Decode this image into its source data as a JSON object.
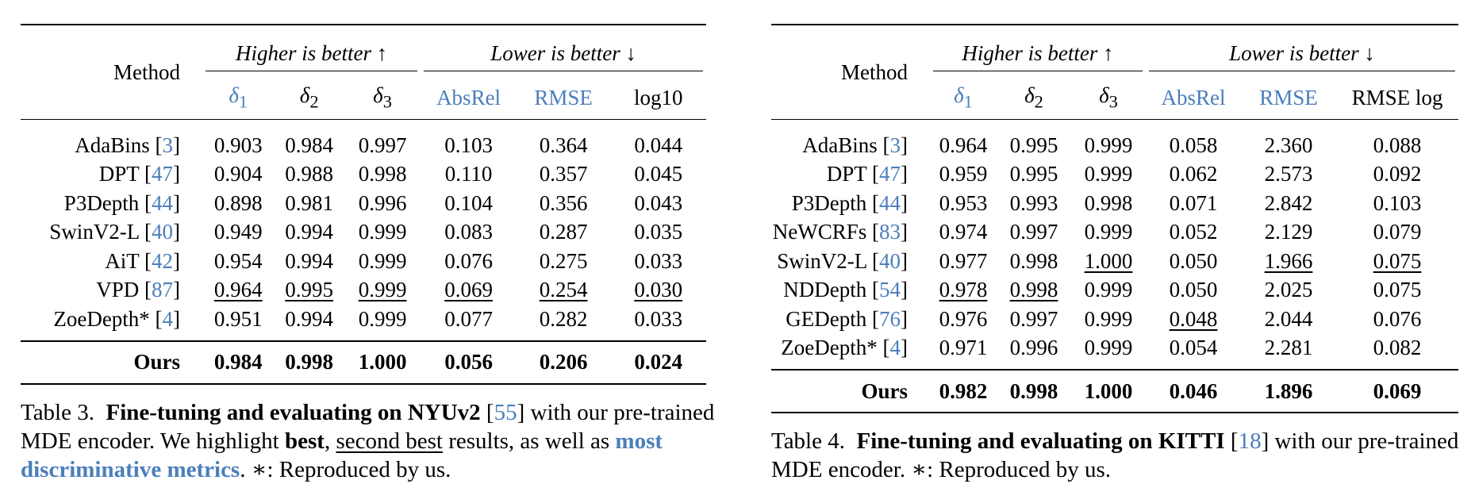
{
  "table3": {
    "group_higher": "Higher is better ↑",
    "group_lower": "Lower is better ↓",
    "method_header": "Method",
    "metrics": [
      {
        "sym": "δ",
        "sub": "1",
        "text": "",
        "blue": true
      },
      {
        "sym": "δ",
        "sub": "2",
        "text": "",
        "blue": false
      },
      {
        "sym": "δ",
        "sub": "3",
        "text": "",
        "blue": false
      },
      {
        "sym": "",
        "sub": "",
        "text": "AbsRel",
        "blue": true
      },
      {
        "sym": "",
        "sub": "",
        "text": "RMSE",
        "blue": true
      },
      {
        "sym": "",
        "sub": "",
        "text": "log10",
        "blue": false
      }
    ],
    "rows": [
      {
        "method": "AdaBins [",
        "ref": "3",
        "values": [
          "0.903",
          "0.984",
          "0.997",
          "0.103",
          "0.364",
          "0.044"
        ],
        "underline": []
      },
      {
        "method": "DPT [",
        "ref": "47",
        "values": [
          "0.904",
          "0.988",
          "0.998",
          "0.110",
          "0.357",
          "0.045"
        ],
        "underline": []
      },
      {
        "method": "P3Depth [",
        "ref": "44",
        "values": [
          "0.898",
          "0.981",
          "0.996",
          "0.104",
          "0.356",
          "0.043"
        ],
        "underline": []
      },
      {
        "method": "SwinV2-L [",
        "ref": "40",
        "values": [
          "0.949",
          "0.994",
          "0.999",
          "0.083",
          "0.287",
          "0.035"
        ],
        "underline": []
      },
      {
        "method": "AiT [",
        "ref": "42",
        "values": [
          "0.954",
          "0.994",
          "0.999",
          "0.076",
          "0.275",
          "0.033"
        ],
        "underline": []
      },
      {
        "method": "VPD [",
        "ref": "87",
        "values": [
          "0.964",
          "0.995",
          "0.999",
          "0.069",
          "0.254",
          "0.030"
        ],
        "underline": [
          0,
          1,
          2,
          3,
          4,
          5
        ]
      },
      {
        "method": "ZoeDepth* [",
        "ref": "4",
        "values": [
          "0.951",
          "0.994",
          "0.999",
          "0.077",
          "0.282",
          "0.033"
        ],
        "underline": []
      }
    ],
    "ours": {
      "method": "Ours",
      "values": [
        "0.984",
        "0.998",
        "1.000",
        "0.056",
        "0.206",
        "0.024"
      ]
    },
    "caption": {
      "label": "Table 3.",
      "bold_title": "Fine-tuning and evaluating on NYUv2",
      "ref": "55",
      "t1": "with our pre-trained MDE encoder. We highlight",
      "best": "best",
      "comma": ",",
      "second": "second best",
      "t2": "results, as well as",
      "discrim": "most discriminative metrics",
      "t3": ". ∗: Reproduced by us."
    }
  },
  "table4": {
    "group_higher": "Higher is better ↑",
    "group_lower": "Lower is better ↓",
    "method_header": "Method",
    "metrics": [
      {
        "sym": "δ",
        "sub": "1",
        "text": "",
        "blue": true
      },
      {
        "sym": "δ",
        "sub": "2",
        "text": "",
        "blue": false
      },
      {
        "sym": "δ",
        "sub": "3",
        "text": "",
        "blue": false
      },
      {
        "sym": "",
        "sub": "",
        "text": "AbsRel",
        "blue": true
      },
      {
        "sym": "",
        "sub": "",
        "text": "RMSE",
        "blue": true
      },
      {
        "sym": "",
        "sub": "",
        "text": "RMSE log",
        "blue": false
      }
    ],
    "rows": [
      {
        "method": "AdaBins [",
        "ref": "3",
        "values": [
          "0.964",
          "0.995",
          "0.999",
          "0.058",
          "2.360",
          "0.088"
        ],
        "underline": []
      },
      {
        "method": "DPT [",
        "ref": "47",
        "values": [
          "0.959",
          "0.995",
          "0.999",
          "0.062",
          "2.573",
          "0.092"
        ],
        "underline": []
      },
      {
        "method": "P3Depth [",
        "ref": "44",
        "values": [
          "0.953",
          "0.993",
          "0.998",
          "0.071",
          "2.842",
          "0.103"
        ],
        "underline": []
      },
      {
        "method": "NeWCRFs [",
        "ref": "83",
        "values": [
          "0.974",
          "0.997",
          "0.999",
          "0.052",
          "2.129",
          "0.079"
        ],
        "underline": []
      },
      {
        "method": "SwinV2-L [",
        "ref": "40",
        "values": [
          "0.977",
          "0.998",
          "1.000",
          "0.050",
          "1.966",
          "0.075"
        ],
        "underline": [
          2,
          4,
          5
        ]
      },
      {
        "method": "NDDepth [",
        "ref": "54",
        "values": [
          "0.978",
          "0.998",
          "0.999",
          "0.050",
          "2.025",
          "0.075"
        ],
        "underline": [
          0,
          1
        ]
      },
      {
        "method": "GEDepth [",
        "ref": "76",
        "values": [
          "0.976",
          "0.997",
          "0.999",
          "0.048",
          "2.044",
          "0.076"
        ],
        "underline": [
          3
        ]
      },
      {
        "method": "ZoeDepth* [",
        "ref": "4",
        "values": [
          "0.971",
          "0.996",
          "0.999",
          "0.054",
          "2.281",
          "0.082"
        ],
        "underline": []
      }
    ],
    "ours": {
      "method": "Ours",
      "values": [
        "0.982",
        "0.998",
        "1.000",
        "0.046",
        "1.896",
        "0.069"
      ]
    },
    "caption": {
      "label": "Table 4.",
      "bold_title": "Fine-tuning and evaluating on KITTI",
      "ref": "18",
      "t1": "with our pre-trained MDE encoder. ∗: Reproduced by us."
    }
  },
  "colors": {
    "accent_blue": "#4a7ebb",
    "text": "#000000"
  }
}
